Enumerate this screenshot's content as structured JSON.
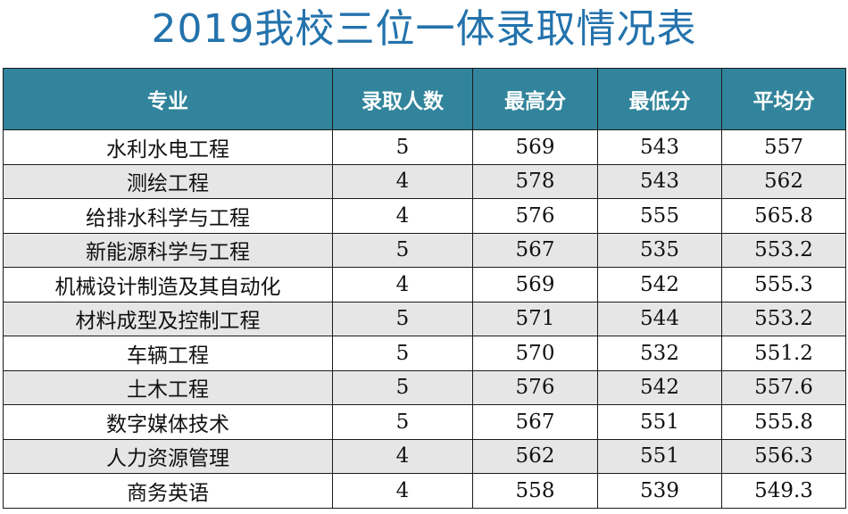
{
  "title": "2019我校三位一体录取情况表",
  "colors": {
    "title": "#2372ac",
    "header_bg": "#31849b",
    "header_text": "#ffffff",
    "alt_row": "#e6e6e6"
  },
  "table": {
    "headers": [
      "专业",
      "录取人数",
      "最高分",
      "最低分",
      "平均分"
    ],
    "rows": [
      [
        "水利水电工程",
        "5",
        "569",
        "543",
        "557"
      ],
      [
        "测绘工程",
        "4",
        "578",
        "543",
        "562"
      ],
      [
        "给排水科学与工程",
        "4",
        "576",
        "555",
        "565.8"
      ],
      [
        "新能源科学与工程",
        "5",
        "567",
        "535",
        "553.2"
      ],
      [
        "机械设计制造及其自动化",
        "4",
        "569",
        "542",
        "555.3"
      ],
      [
        "材料成型及控制工程",
        "5",
        "571",
        "544",
        "553.2"
      ],
      [
        "车辆工程",
        "5",
        "570",
        "532",
        "551.2"
      ],
      [
        "土木工程",
        "5",
        "576",
        "542",
        "557.6"
      ],
      [
        "数字媒体技术",
        "5",
        "567",
        "551",
        "555.8"
      ],
      [
        "人力资源管理",
        "4",
        "562",
        "551",
        "556.3"
      ],
      [
        "商务英语",
        "4",
        "558",
        "539",
        "549.3"
      ]
    ]
  }
}
